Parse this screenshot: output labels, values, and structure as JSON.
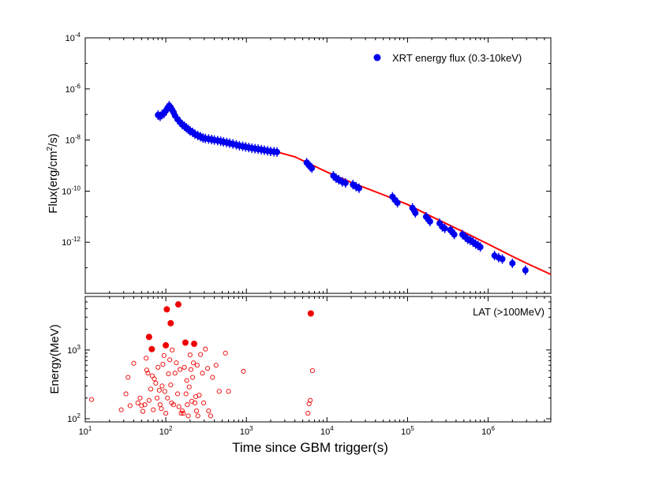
{
  "chart_data": [
    {
      "type": "scatter",
      "panel": "top",
      "ylabel": "Flux(erg/cm²/s)",
      "ylabel_parts": [
        "Flux(erg/cm",
        "2",
        "/s)"
      ],
      "yscale": "log",
      "xscale": "log",
      "ylim": [
        1e-14,
        0.0001
      ],
      "xlim": [
        10,
        6000000
      ],
      "yticks": [
        {
          "value": 1e-12,
          "base": "10",
          "exp": "-12"
        },
        {
          "value": 1e-10,
          "base": "10",
          "exp": "-10"
        },
        {
          "value": 1e-08,
          "base": "10",
          "exp": "-8"
        },
        {
          "value": 1e-06,
          "base": "10",
          "exp": "-6"
        },
        {
          "value": 0.0001,
          "base": "10",
          "exp": "-4"
        }
      ],
      "legend": {
        "label": "XRT energy flux (0.3-10keV)",
        "position": "top-right",
        "color": "#0000ee"
      },
      "series": [
        {
          "name": "XRT energy flux (0.3-10keV)",
          "color": "#0000ee",
          "marker": "filled-circle",
          "points": [
            [
              80,
              9.5e-08
            ],
            [
              85,
              8.5e-08
            ],
            [
              90,
              1e-07
            ],
            [
              95,
              1.1e-07
            ],
            [
              100,
              1.4e-07
            ],
            [
              105,
              1.8e-07
            ],
            [
              110,
              2.2e-07
            ],
            [
              115,
              1.9e-07
            ],
            [
              120,
              1.5e-07
            ],
            [
              125,
              1.2e-07
            ],
            [
              130,
              9e-08
            ],
            [
              140,
              6.5e-08
            ],
            [
              150,
              5e-08
            ],
            [
              160,
              4e-08
            ],
            [
              170,
              3.5e-08
            ],
            [
              180,
              3e-08
            ],
            [
              190,
              2.6e-08
            ],
            [
              200,
              2.3e-08
            ],
            [
              215,
              2e-08
            ],
            [
              230,
              1.7e-08
            ],
            [
              250,
              1.5e-08
            ],
            [
              270,
              1.35e-08
            ],
            [
              290,
              1.2e-08
            ],
            [
              310,
              1.15e-08
            ],
            [
              340,
              1.1e-08
            ],
            [
              370,
              1.05e-08
            ],
            [
              400,
              1e-08
            ],
            [
              440,
              9.5e-09
            ],
            [
              480,
              9e-09
            ],
            [
              520,
              8.5e-09
            ],
            [
              570,
              8e-09
            ],
            [
              620,
              7.5e-09
            ],
            [
              680,
              7e-09
            ],
            [
              750,
              6.5e-09
            ],
            [
              820,
              6e-09
            ],
            [
              900,
              5.7e-09
            ],
            [
              980,
              5.4e-09
            ],
            [
              1070,
              5.1e-09
            ],
            [
              1170,
              4.8e-09
            ],
            [
              1280,
              4.6e-09
            ],
            [
              1400,
              4.4e-09
            ],
            [
              1530,
              4.2e-09
            ],
            [
              1670,
              4e-09
            ],
            [
              1830,
              3.8e-09
            ],
            [
              2000,
              3.6e-09
            ],
            [
              2200,
              3.5e-09
            ],
            [
              2400,
              3.4e-09
            ],
            [
              5600,
              1.3e-09
            ],
            [
              5900,
              1.1e-09
            ],
            [
              6200,
              9e-10
            ],
            [
              6500,
              8e-10
            ],
            [
              12000,
              4e-10
            ],
            [
              13000,
              3.2e-10
            ],
            [
              14000,
              2.8e-10
            ],
            [
              15500,
              2.3e-10
            ],
            [
              17000,
              2.1e-10
            ],
            [
              21000,
              1.8e-10
            ],
            [
              23000,
              1.5e-10
            ],
            [
              25000,
              1.3e-10
            ],
            [
              65000,
              6e-11
            ],
            [
              70000,
              4.5e-11
            ],
            [
              75000,
              3.5e-11
            ],
            [
              115000,
              2.2e-11
            ],
            [
              120000,
              1.8e-11
            ],
            [
              125000,
              1.4e-11
            ],
            [
              170000,
              1e-11
            ],
            [
              180000,
              8e-12
            ],
            [
              190000,
              6.5e-12
            ],
            [
              250000,
              5.5e-12
            ],
            [
              270000,
              4e-12
            ],
            [
              290000,
              3.5e-12
            ],
            [
              340000,
              3e-12
            ],
            [
              360000,
              2.5e-12
            ],
            [
              380000,
              2e-12
            ],
            [
              480000,
              2e-12
            ],
            [
              520000,
              1.6e-12
            ],
            [
              560000,
              1.3e-12
            ],
            [
              600000,
              1.2e-12
            ],
            [
              650000,
              1e-12
            ],
            [
              700000,
              8.5e-13
            ],
            [
              750000,
              7.5e-13
            ],
            [
              800000,
              6.5e-13
            ],
            [
              1200000,
              3e-13
            ],
            [
              1350000,
              2.5e-13
            ],
            [
              1500000,
              2.2e-13
            ],
            [
              2000000,
              1.5e-13
            ],
            [
              2900000,
              8e-14
            ]
          ]
        },
        {
          "name": "model",
          "color": "#ff0000",
          "type": "line",
          "points": [
            [
              80,
              6.5e-08
            ],
            [
              95,
              1e-07
            ],
            [
              110,
              1.6e-07
            ],
            [
              120,
              1.1e-07
            ],
            [
              150,
              4.5e-08
            ],
            [
              200,
              2.2e-08
            ],
            [
              250,
              1.5e-08
            ],
            [
              300,
              1.2e-08
            ],
            [
              500,
              8.5e-09
            ],
            [
              1000,
              5.6e-09
            ],
            [
              2500,
              3.3e-09
            ],
            [
              4000,
              2.2e-09
            ],
            [
              6000,
              1.2e-09
            ],
            [
              10000,
              5.6e-10
            ],
            [
              20000,
              2.2e-10
            ],
            [
              50000,
              7.2e-11
            ],
            [
              100000,
              3e-11
            ],
            [
              200000,
              1e-11
            ],
            [
              500000,
              2.5e-12
            ],
            [
              1000000,
              8.5e-13
            ],
            [
              2000000,
              2.8e-13
            ],
            [
              3000000,
              1.5e-13
            ],
            [
              6000000,
              5.5e-14
            ]
          ]
        }
      ]
    },
    {
      "type": "scatter",
      "panel": "bottom",
      "xlabel": "Time since GBM trigger(s)",
      "ylabel": "Energy(MeV)",
      "xscale": "log",
      "yscale": "log",
      "xlim": [
        10,
        6000000
      ],
      "ylim": [
        90,
        6000
      ],
      "xticks": [
        {
          "value": 10,
          "base": "10",
          "exp": "1"
        },
        {
          "value": 100,
          "base": "10",
          "exp": "2"
        },
        {
          "value": 1000,
          "base": "10",
          "exp": "3"
        },
        {
          "value": 10000,
          "base": "10",
          "exp": "4"
        },
        {
          "value": 100000,
          "base": "10",
          "exp": "5"
        },
        {
          "value": 1000000,
          "base": "10",
          "exp": "6"
        }
      ],
      "yticks": [
        {
          "value": 100,
          "base": "10",
          "exp": "2"
        },
        {
          "value": 1000,
          "base": "10",
          "exp": "3"
        }
      ],
      "legend": {
        "label": "LAT (>100MeV)",
        "position": "top-right"
      },
      "series": [
        {
          "name": "filled",
          "color": "#ee0000",
          "marker": "filled-circle",
          "points": [
            [
              62,
              1550
            ],
            [
              67,
              1030
            ],
            [
              100,
              1170
            ],
            [
              103,
              3900
            ],
            [
              115,
              2450
            ],
            [
              143,
              4600
            ],
            [
              175,
              1280
            ],
            [
              225,
              1230
            ],
            [
              6300,
              3400
            ]
          ]
        },
        {
          "name": "open",
          "color": "#ee0000",
          "marker": "open-circle",
          "points": [
            [
              12,
              190
            ],
            [
              28,
              135
            ],
            [
              32,
              230
            ],
            [
              34,
              400
            ],
            [
              36,
              155
            ],
            [
              40,
              640
            ],
            [
              45,
              170
            ],
            [
              48,
              200
            ],
            [
              50,
              155
            ],
            [
              52,
              128
            ],
            [
              55,
              160
            ],
            [
              57,
              760
            ],
            [
              58,
              510
            ],
            [
              60,
              460
            ],
            [
              62,
              185
            ],
            [
              65,
              270
            ],
            [
              68,
              420
            ],
            [
              70,
              135
            ],
            [
              72,
              380
            ],
            [
              75,
              330
            ],
            [
              78,
              200
            ],
            [
              80,
              560
            ],
            [
              83,
              260
            ],
            [
              85,
              160
            ],
            [
              88,
              140
            ],
            [
              90,
              300
            ],
            [
              92,
              620
            ],
            [
              95,
              830
            ],
            [
              97,
              250
            ],
            [
              100,
              120
            ],
            [
              105,
              200
            ],
            [
              108,
              450
            ],
            [
              112,
              720
            ],
            [
              115,
              310
            ],
            [
              118,
              170
            ],
            [
              120,
              1000
            ],
            [
              125,
              160
            ],
            [
              130,
              460
            ],
            [
              135,
              650
            ],
            [
              140,
              230
            ],
            [
              145,
              150
            ],
            [
              150,
              520
            ],
            [
              155,
              120
            ],
            [
              160,
              130
            ],
            [
              165,
              120
            ],
            [
              170,
              560
            ],
            [
              178,
              230
            ],
            [
              182,
              360
            ],
            [
              185,
              160
            ],
            [
              190,
              110
            ],
            [
              195,
              290
            ],
            [
              200,
              850
            ],
            [
              205,
              520
            ],
            [
              210,
              180
            ],
            [
              215,
              400
            ],
            [
              220,
              650
            ],
            [
              230,
              170
            ],
            [
              235,
              210
            ],
            [
              240,
              130
            ],
            [
              245,
              600
            ],
            [
              250,
              110
            ],
            [
              260,
              220
            ],
            [
              270,
              860
            ],
            [
              285,
              460
            ],
            [
              295,
              170
            ],
            [
              310,
              1030
            ],
            [
              330,
              540
            ],
            [
              340,
              130
            ],
            [
              360,
              110
            ],
            [
              380,
              400
            ],
            [
              420,
              600
            ],
            [
              460,
              250
            ],
            [
              550,
              900
            ],
            [
              600,
              250
            ],
            [
              920,
              490
            ],
            [
              5800,
              120
            ],
            [
              6000,
              165
            ],
            [
              6200,
              185
            ],
            [
              6600,
              500
            ]
          ]
        }
      ]
    }
  ]
}
